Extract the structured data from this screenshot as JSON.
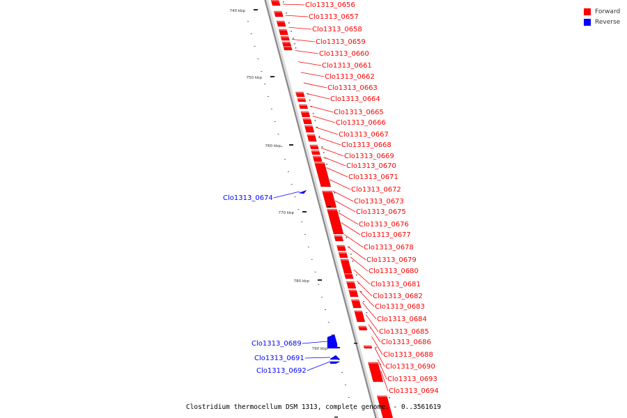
{
  "title": "Clostridium thermocellum DSM 1313, complete genome. - 0..3561619",
  "legend": [
    {
      "label": "Forward",
      "color": "#ff0000"
    },
    {
      "label": "Reverse",
      "color": "#0000ff"
    }
  ],
  "colors": {
    "forward": "#ff0000",
    "reverse": "#0000ff",
    "backbone": "#888888"
  },
  "ticks": [
    "740 kbp",
    "750 kbp",
    "760 kbp",
    "770 kbp",
    "780 kbp",
    "790 kbp"
  ],
  "genes": [
    {
      "id": "Clo1313_0656",
      "strand": "forward"
    },
    {
      "id": "Clo1313_0657",
      "strand": "forward"
    },
    {
      "id": "Clo1313_0658",
      "strand": "forward"
    },
    {
      "id": "Clo1313_0659",
      "strand": "forward"
    },
    {
      "id": "Clo1313_0660",
      "strand": "forward"
    },
    {
      "id": "Clo1313_0661",
      "strand": "forward"
    },
    {
      "id": "Clo1313_0662",
      "strand": "forward"
    },
    {
      "id": "Clo1313_0663",
      "strand": "forward"
    },
    {
      "id": "Clo1313_0664",
      "strand": "forward"
    },
    {
      "id": "Clo1313_0665",
      "strand": "forward"
    },
    {
      "id": "Clo1313_0666",
      "strand": "forward"
    },
    {
      "id": "Clo1313_0667",
      "strand": "forward"
    },
    {
      "id": "Clo1313_0668",
      "strand": "forward"
    },
    {
      "id": "Clo1313_0669",
      "strand": "forward"
    },
    {
      "id": "Clo1313_0670",
      "strand": "forward"
    },
    {
      "id": "Clo1313_0671",
      "strand": "forward"
    },
    {
      "id": "Clo1313_0672",
      "strand": "forward"
    },
    {
      "id": "Clo1313_0673",
      "strand": "forward"
    },
    {
      "id": "Clo1313_0674",
      "strand": "reverse"
    },
    {
      "id": "Clo1313_0675",
      "strand": "forward"
    },
    {
      "id": "Clo1313_0676",
      "strand": "forward"
    },
    {
      "id": "Clo1313_0677",
      "strand": "forward"
    },
    {
      "id": "Clo1313_0678",
      "strand": "forward"
    },
    {
      "id": "Clo1313_0679",
      "strand": "forward"
    },
    {
      "id": "Clo1313_0680",
      "strand": "forward"
    },
    {
      "id": "Clo1313_0681",
      "strand": "forward"
    },
    {
      "id": "Clo1313_0682",
      "strand": "forward"
    },
    {
      "id": "Clo1313_0683",
      "strand": "forward"
    },
    {
      "id": "Clo1313_0684",
      "strand": "forward"
    },
    {
      "id": "Clo1313_0685",
      "strand": "forward"
    },
    {
      "id": "Clo1313_0686",
      "strand": "forward"
    },
    {
      "id": "Clo1313_0688",
      "strand": "forward"
    },
    {
      "id": "Clo1313_0689",
      "strand": "reverse"
    },
    {
      "id": "Clo1313_0690",
      "strand": "forward"
    },
    {
      "id": "Clo1313_0691",
      "strand": "reverse"
    },
    {
      "id": "Clo1313_0692",
      "strand": "reverse"
    },
    {
      "id": "Clo1313_0693",
      "strand": "forward"
    },
    {
      "id": "Clo1313_0694",
      "strand": "forward"
    }
  ]
}
